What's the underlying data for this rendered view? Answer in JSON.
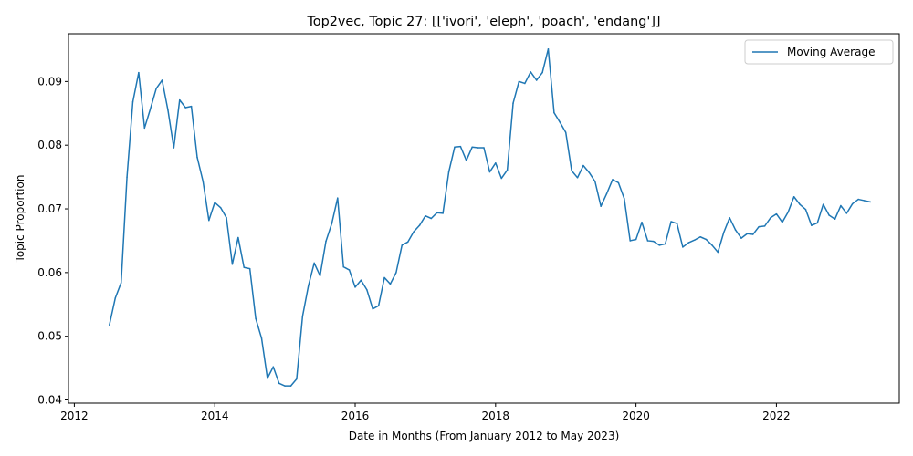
{
  "chart_data": {
    "type": "line",
    "title": "Top2vec, Topic 27: [['ivori', 'eleph', 'poach', 'endang']]",
    "xlabel": "Date in Months (From January 2012 to May 2023)",
    "ylabel": "Topic Proportion",
    "x_ticks": [
      "2012",
      "2014",
      "2016",
      "2018",
      "2020",
      "2022"
    ],
    "y_ticks": [
      "0.04",
      "0.05",
      "0.06",
      "0.07",
      "0.08",
      "0.09"
    ],
    "xlim": [
      "2011-12",
      "2023-10"
    ],
    "ylim": [
      0.0395,
      0.0975
    ],
    "grid": false,
    "legend_position": "top-right",
    "series": [
      {
        "name": "Moving Average",
        "color": "#1f77b4",
        "x": [
          "2012-07",
          "2012-08",
          "2012-09",
          "2012-10",
          "2012-11",
          "2012-12",
          "2013-01",
          "2013-02",
          "2013-03",
          "2013-04",
          "2013-05",
          "2013-06",
          "2013-07",
          "2013-08",
          "2013-09",
          "2013-10",
          "2013-11",
          "2013-12",
          "2014-01",
          "2014-02",
          "2014-03",
          "2014-04",
          "2014-05",
          "2014-06",
          "2014-07",
          "2014-08",
          "2014-09",
          "2014-10",
          "2014-11",
          "2014-12",
          "2015-01",
          "2015-02",
          "2015-03",
          "2015-04",
          "2015-05",
          "2015-06",
          "2015-07",
          "2015-08",
          "2015-09",
          "2015-10",
          "2015-11",
          "2015-12",
          "2016-01",
          "2016-02",
          "2016-03",
          "2016-04",
          "2016-05",
          "2016-06",
          "2016-07",
          "2016-08",
          "2016-09",
          "2016-10",
          "2016-11",
          "2016-12",
          "2017-01",
          "2017-02",
          "2017-03",
          "2017-04",
          "2017-05",
          "2017-06",
          "2017-07",
          "2017-08",
          "2017-09",
          "2017-10",
          "2017-11",
          "2017-12",
          "2018-01",
          "2018-02",
          "2018-03",
          "2018-04",
          "2018-05",
          "2018-06",
          "2018-07",
          "2018-08",
          "2018-09",
          "2018-10",
          "2018-11",
          "2018-12",
          "2019-01",
          "2019-02",
          "2019-03",
          "2019-04",
          "2019-05",
          "2019-06",
          "2019-07",
          "2019-08",
          "2019-09",
          "2019-10",
          "2019-11",
          "2019-12",
          "2020-01",
          "2020-02",
          "2020-03",
          "2020-04",
          "2020-05",
          "2020-06",
          "2020-07",
          "2020-08",
          "2020-09",
          "2020-10",
          "2020-11",
          "2020-12",
          "2021-01",
          "2021-02",
          "2021-03",
          "2021-04",
          "2021-05",
          "2021-06",
          "2021-07",
          "2021-08",
          "2021-09",
          "2021-10",
          "2021-11",
          "2021-12",
          "2022-01",
          "2022-02",
          "2022-03",
          "2022-04",
          "2022-05",
          "2022-06",
          "2022-07",
          "2022-08",
          "2022-09",
          "2022-10",
          "2022-11",
          "2022-12",
          "2023-01",
          "2023-02",
          "2023-03",
          "2023-04",
          "2023-05"
        ],
        "values": [
          0.0518,
          0.056,
          0.0584,
          0.075,
          0.0868,
          0.0914,
          0.0827,
          0.0857,
          0.0889,
          0.0902,
          0.0855,
          0.0796,
          0.0871,
          0.0859,
          0.0861,
          0.0781,
          0.0743,
          0.0682,
          0.071,
          0.0702,
          0.0686,
          0.0613,
          0.0655,
          0.0608,
          0.0606,
          0.0528,
          0.0497,
          0.0434,
          0.0452,
          0.0426,
          0.0422,
          0.0422,
          0.0433,
          0.0531,
          0.0579,
          0.0615,
          0.0595,
          0.0649,
          0.0677,
          0.0717,
          0.0609,
          0.0604,
          0.0577,
          0.0588,
          0.0573,
          0.0543,
          0.0548,
          0.0592,
          0.0582,
          0.06,
          0.0643,
          0.0648,
          0.0664,
          0.0674,
          0.0689,
          0.0685,
          0.0694,
          0.0693,
          0.0758,
          0.0797,
          0.0798,
          0.0776,
          0.0797,
          0.0796,
          0.0796,
          0.0758,
          0.0772,
          0.0748,
          0.0761,
          0.0866,
          0.09,
          0.0897,
          0.0915,
          0.0902,
          0.0914,
          0.0951,
          0.0851,
          0.0836,
          0.082,
          0.076,
          0.0749,
          0.0768,
          0.0757,
          0.0743,
          0.0704,
          0.0724,
          0.0746,
          0.0741,
          0.0716,
          0.065,
          0.0652,
          0.0679,
          0.065,
          0.0649,
          0.0643,
          0.0645,
          0.068,
          0.0677,
          0.064,
          0.0647,
          0.0651,
          0.0656,
          0.0652,
          0.0643,
          0.0632,
          0.0663,
          0.0686,
          0.0667,
          0.0654,
          0.0661,
          0.066,
          0.0672,
          0.0673,
          0.0686,
          0.0692,
          0.0679,
          0.0695,
          0.0719,
          0.0707,
          0.0699,
          0.0674,
          0.0678,
          0.0707,
          0.069,
          0.0684,
          0.0705,
          0.0693,
          0.0708,
          0.0715,
          0.0713,
          0.0711
        ]
      }
    ]
  }
}
